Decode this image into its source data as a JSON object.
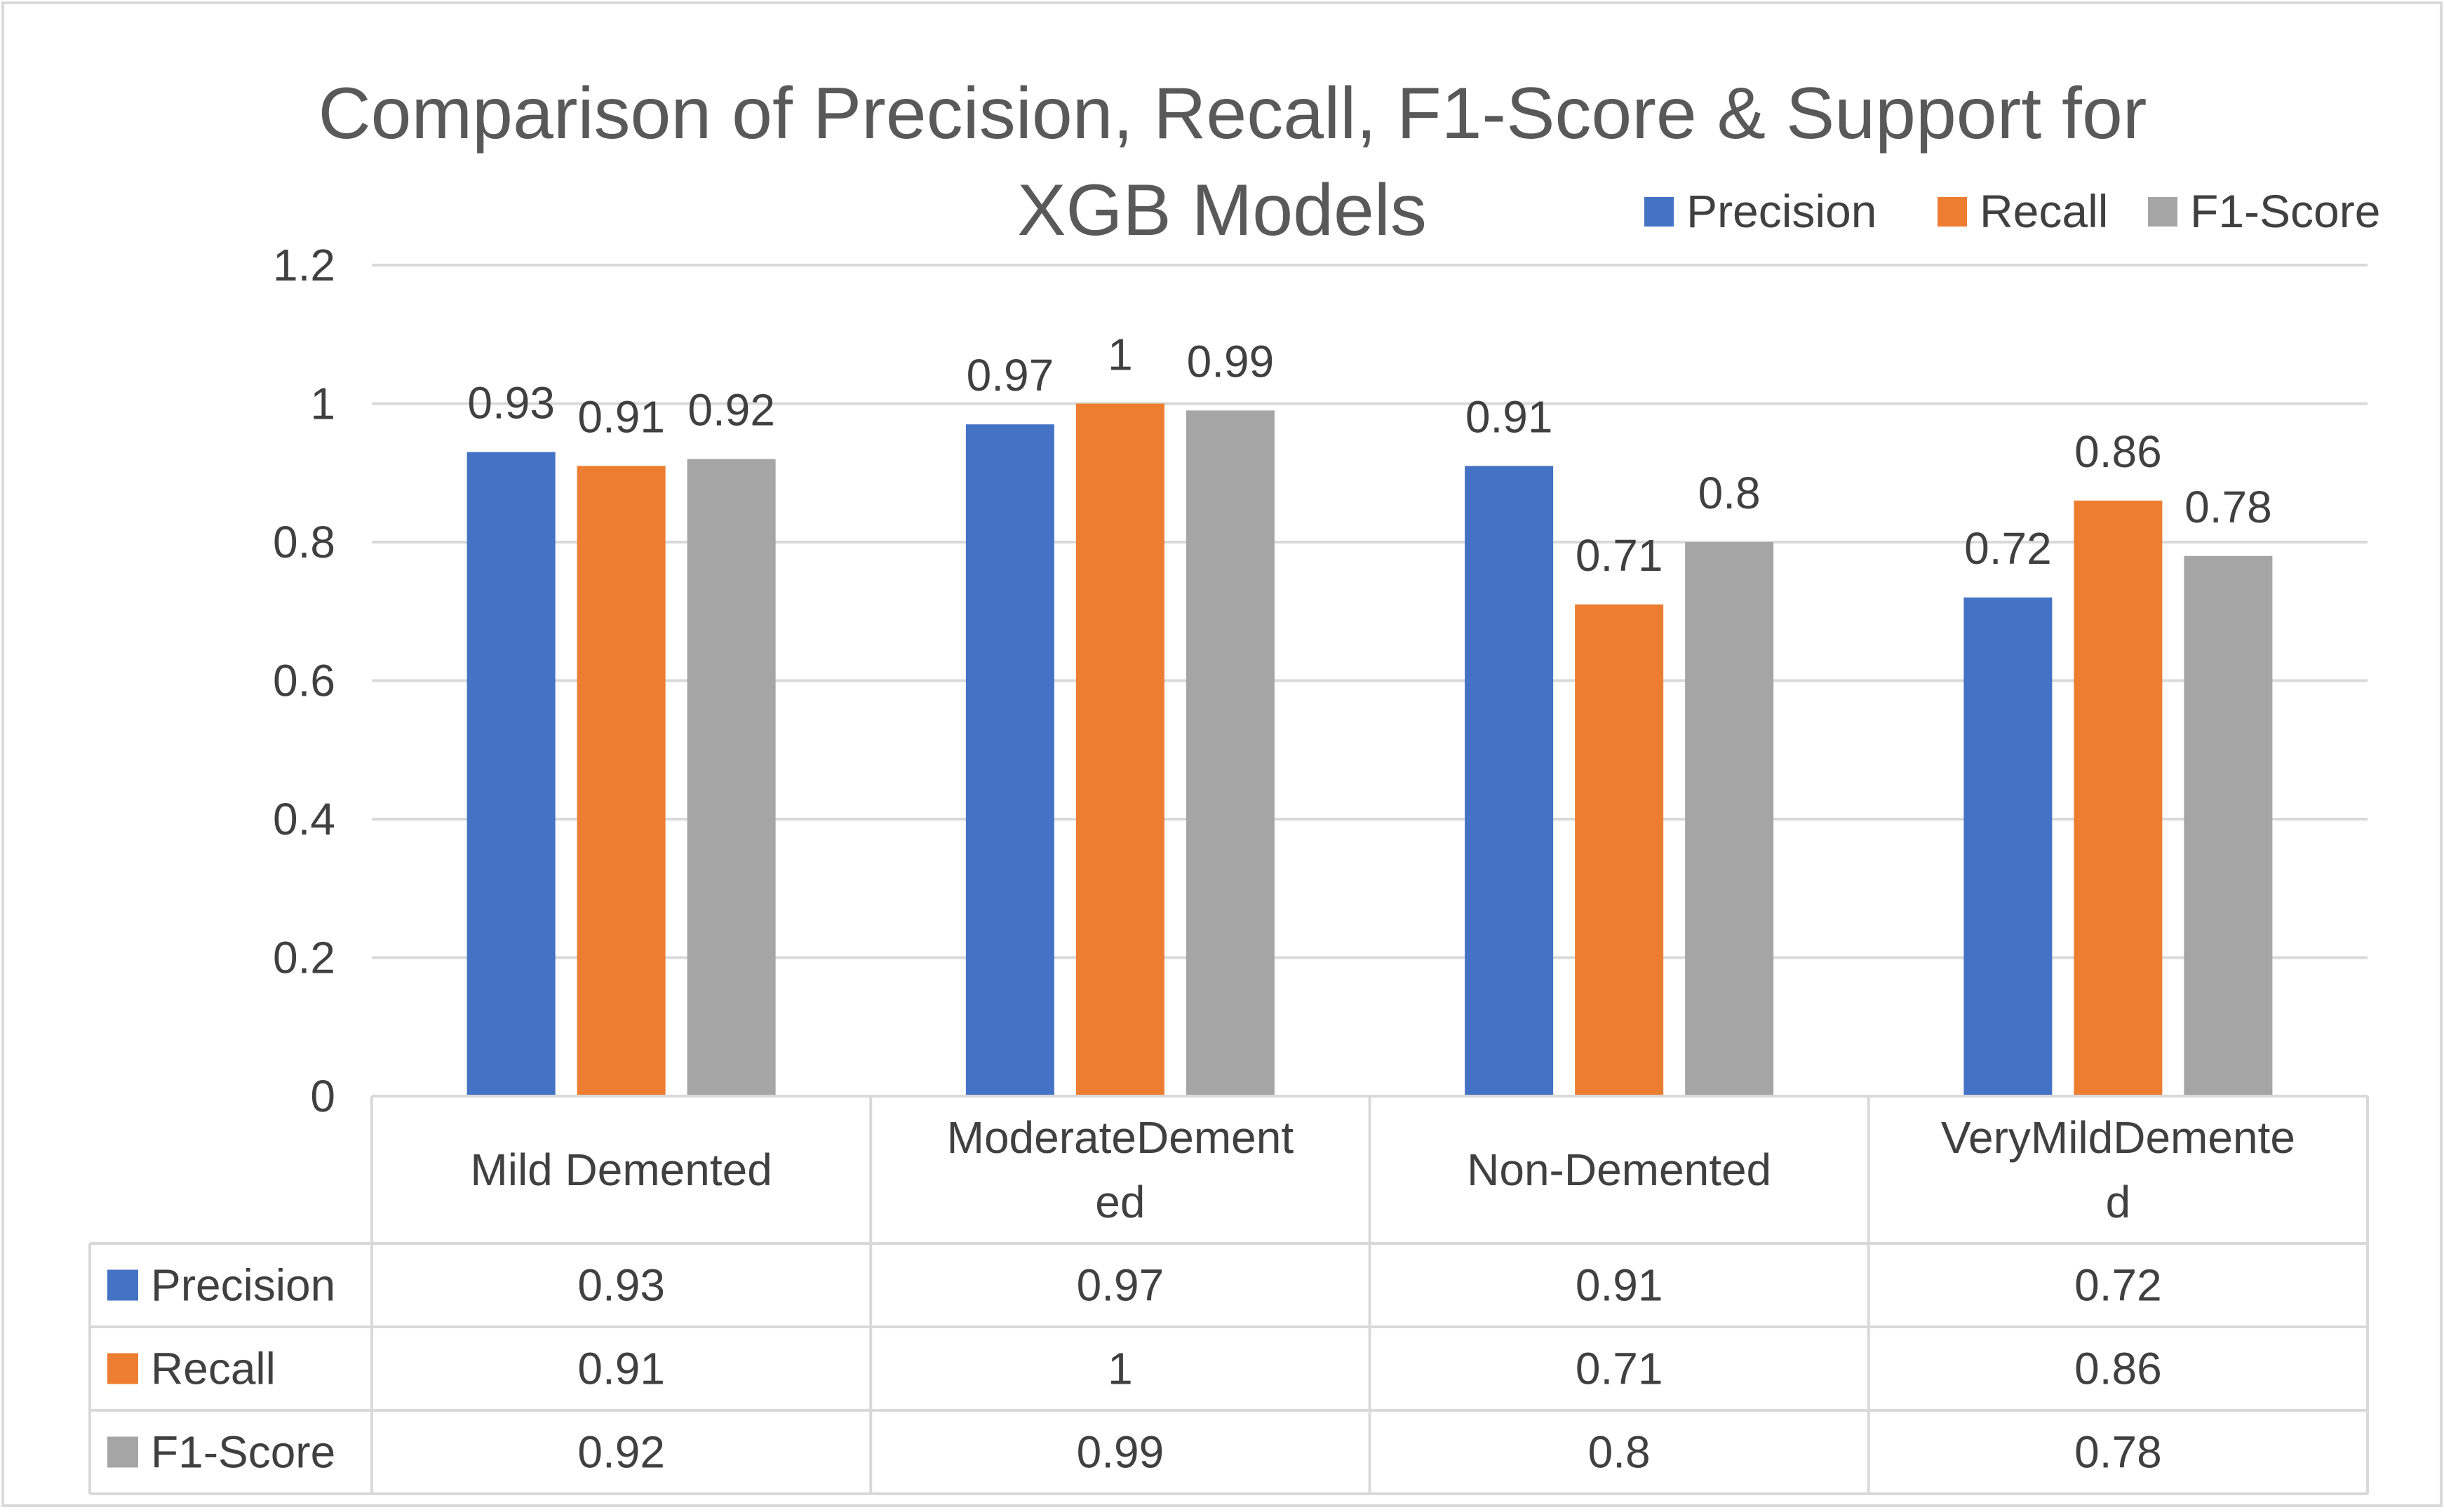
{
  "chart_data": {
    "type": "bar",
    "title": "Comparison of Precision, Recall, F1-Score & Support for XGB Models",
    "title_lines": [
      "Comparison of Precision, Recall, F1-Score & Support for",
      "XGB Models"
    ],
    "categories": [
      "Mild Demented",
      "ModerateDemented",
      "Non-Demented",
      "VeryMildDemented"
    ],
    "category_label_lines": [
      [
        "Mild Demented"
      ],
      [
        "ModerateDement",
        "ed"
      ],
      [
        "Non-Demented"
      ],
      [
        "VeryMildDemente",
        "d"
      ]
    ],
    "series": [
      {
        "name": "Precision",
        "color": "#4472C4",
        "values": [
          0.93,
          0.97,
          0.91,
          0.72
        ]
      },
      {
        "name": "Recall",
        "color": "#ED7D31",
        "values": [
          0.91,
          1,
          0.71,
          0.86
        ]
      },
      {
        "name": "F1-Score",
        "color": "#A5A5A5",
        "values": [
          0.92,
          0.99,
          0.8,
          0.78
        ]
      }
    ],
    "ylim": [
      0,
      1.2
    ],
    "yticks": [
      "0",
      "0.2",
      "0.4",
      "0.6",
      "0.8",
      "1",
      "1.2"
    ],
    "ytick_values": [
      0,
      0.2,
      0.4,
      0.6,
      0.8,
      1,
      1.2
    ],
    "xlabel": "",
    "ylabel": "",
    "grid": true,
    "legend": "top-right",
    "data_table": true
  }
}
